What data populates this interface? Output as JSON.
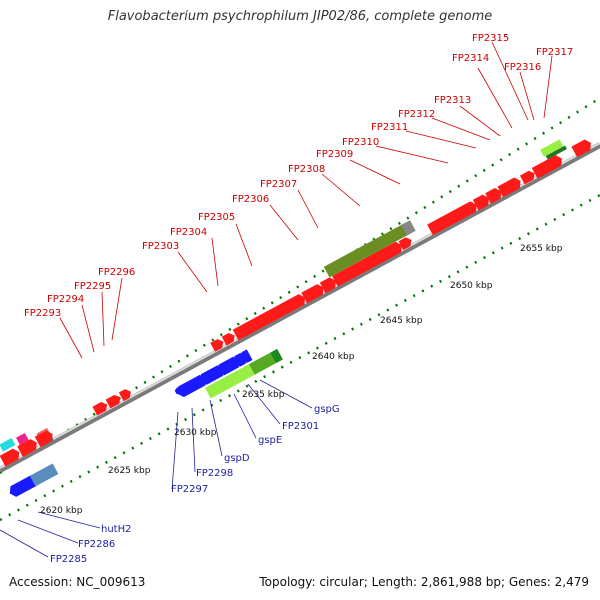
{
  "title": "Flavobacterium psychrophilum JIP02/86, complete genome",
  "footer": {
    "accession": "Accession: NC_009613",
    "stats": "Topology: circular; Length: 2,861,988 bp; Genes: 2,479"
  },
  "colors": {
    "forward_gene": "#ff1a1a",
    "reverse_gene": "#1a1aff",
    "rna": "#99ee44",
    "backbone": "#888888",
    "tick": "#007700",
    "top_label": "#cc0000",
    "bottom_label": "#2020a0"
  },
  "kbp_marks": [
    "2620 kbp",
    "2625 kbp",
    "2630 kbp",
    "2635 kbp",
    "2640 kbp",
    "2645 kbp",
    "2650 kbp",
    "2655 kbp"
  ],
  "top_labels": [
    "FP2293",
    "FP2294",
    "FP2295",
    "FP2296",
    "FP2303",
    "FP2304",
    "FP2305",
    "FP2306",
    "FP2307",
    "FP2308",
    "FP2309",
    "FP2310",
    "FP2311",
    "FP2312",
    "FP2313",
    "FP2314",
    "FP2315",
    "FP2316",
    "FP2317"
  ],
  "bottom_labels": [
    "FP2285",
    "FP2286",
    "hutH2",
    "FP2297",
    "FP2298",
    "gspD",
    "gspE",
    "FP2301",
    "gspG"
  ]
}
